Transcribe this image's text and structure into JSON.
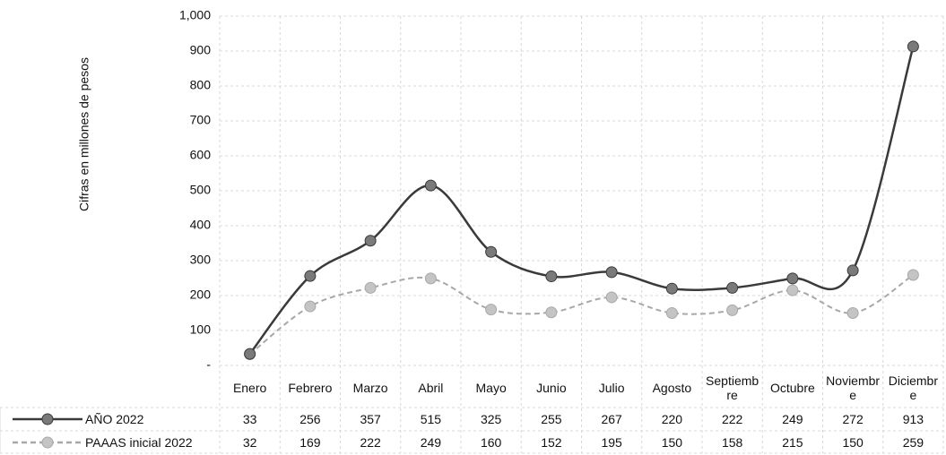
{
  "chart_data": {
    "type": "line",
    "y_label": "Cifras en millones de pesos",
    "categories": [
      "Enero",
      "Febrero",
      "Marzo",
      "Abril",
      "Mayo",
      "Junio",
      "Julio",
      "Agosto",
      "Septiembre",
      "Octubre",
      "Noviembre",
      "Diciembre"
    ],
    "series": [
      {
        "name": "AÑO 2022",
        "color": "#3a3a3a",
        "marker_color": "#7a7a7a",
        "dashed": false,
        "values": [
          33,
          256,
          357,
          515,
          325,
          255,
          267,
          220,
          222,
          249,
          272,
          913
        ]
      },
      {
        "name": "PAAAS inicial 2022",
        "color": "#a8a8a8",
        "marker_color": "#c4c4c4",
        "dashed": true,
        "values": [
          32,
          169,
          222,
          249,
          160,
          152,
          195,
          150,
          158,
          215,
          150,
          259
        ]
      }
    ],
    "ylim": [
      0,
      1000
    ],
    "yticks": [
      {
        "value": 0,
        "label": "-"
      },
      100,
      200,
      300,
      400,
      500,
      600,
      700,
      800,
      900,
      {
        "value": 1000,
        "label": "1,000"
      }
    ],
    "grid": true
  }
}
